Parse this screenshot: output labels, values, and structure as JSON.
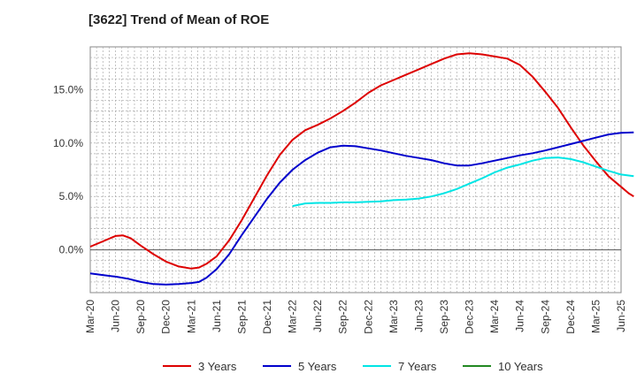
{
  "chart_data": {
    "type": "line",
    "title": "[3622]  Trend of Mean of ROE",
    "xlabel": "",
    "ylabel": "",
    "x_tick_labels": [
      "Mar-20",
      "Jun-20",
      "Sep-20",
      "Dec-20",
      "Mar-21",
      "Jun-21",
      "Sep-21",
      "Dec-21",
      "Mar-22",
      "Jun-22",
      "Sep-22",
      "Dec-22",
      "Mar-23",
      "Jun-23",
      "Sep-23",
      "Dec-23",
      "Mar-24",
      "Jun-24",
      "Sep-24",
      "Dec-24",
      "Mar-25",
      "Jun-25"
    ],
    "y_tick_labels": [
      "0.0%",
      "5.0%",
      "10.0%",
      "15.0%"
    ],
    "y_ticks": [
      0,
      5,
      10,
      15
    ],
    "ylim": [
      -4,
      19
    ],
    "grid": true,
    "legend_position": "bottom",
    "series": [
      {
        "name": "3 Years",
        "color": "#dd0000",
        "points": [
          [
            0,
            0.3
          ],
          [
            0.5,
            0.8
          ],
          [
            1,
            1.3
          ],
          [
            1.3,
            1.35
          ],
          [
            1.6,
            1.1
          ],
          [
            2,
            0.4
          ],
          [
            2.5,
            -0.4
          ],
          [
            3,
            -1.1
          ],
          [
            3.5,
            -1.55
          ],
          [
            4,
            -1.75
          ],
          [
            4.3,
            -1.65
          ],
          [
            4.6,
            -1.3
          ],
          [
            5,
            -0.6
          ],
          [
            5.5,
            0.9
          ],
          [
            6,
            2.8
          ],
          [
            6.5,
            4.9
          ],
          [
            7,
            7.0
          ],
          [
            7.5,
            8.9
          ],
          [
            8,
            10.3
          ],
          [
            8.5,
            11.2
          ],
          [
            9,
            11.7
          ],
          [
            9.5,
            12.3
          ],
          [
            10,
            13.0
          ],
          [
            10.5,
            13.8
          ],
          [
            11,
            14.7
          ],
          [
            11.5,
            15.4
          ],
          [
            12,
            15.9
          ],
          [
            12.5,
            16.4
          ],
          [
            13,
            16.9
          ],
          [
            13.5,
            17.4
          ],
          [
            14,
            17.9
          ],
          [
            14.5,
            18.3
          ],
          [
            15,
            18.4
          ],
          [
            15.5,
            18.3
          ],
          [
            16,
            18.1
          ],
          [
            16.5,
            17.9
          ],
          [
            17,
            17.3
          ],
          [
            17.5,
            16.2
          ],
          [
            18,
            14.8
          ],
          [
            18.5,
            13.3
          ],
          [
            19,
            11.5
          ],
          [
            19.5,
            9.8
          ],
          [
            20,
            8.3
          ],
          [
            20.5,
            6.9
          ],
          [
            21,
            5.9
          ],
          [
            21.3,
            5.3
          ],
          [
            21.5,
            5.0
          ]
        ]
      },
      {
        "name": "5 Years",
        "color": "#0000cc",
        "points": [
          [
            0,
            -2.2
          ],
          [
            0.5,
            -2.35
          ],
          [
            1,
            -2.5
          ],
          [
            1.5,
            -2.7
          ],
          [
            2,
            -3.0
          ],
          [
            2.5,
            -3.2
          ],
          [
            3,
            -3.25
          ],
          [
            3.5,
            -3.2
          ],
          [
            4,
            -3.1
          ],
          [
            4.3,
            -3.0
          ],
          [
            4.6,
            -2.6
          ],
          [
            5,
            -1.8
          ],
          [
            5.5,
            -0.4
          ],
          [
            6,
            1.4
          ],
          [
            6.5,
            3.1
          ],
          [
            7,
            4.8
          ],
          [
            7.5,
            6.3
          ],
          [
            8,
            7.5
          ],
          [
            8.5,
            8.4
          ],
          [
            9,
            9.1
          ],
          [
            9.5,
            9.6
          ],
          [
            10,
            9.75
          ],
          [
            10.5,
            9.7
          ],
          [
            11,
            9.5
          ],
          [
            11.5,
            9.3
          ],
          [
            12,
            9.05
          ],
          [
            12.5,
            8.8
          ],
          [
            13,
            8.6
          ],
          [
            13.5,
            8.4
          ],
          [
            14,
            8.1
          ],
          [
            14.5,
            7.9
          ],
          [
            15,
            7.9
          ],
          [
            15.5,
            8.1
          ],
          [
            16,
            8.35
          ],
          [
            16.5,
            8.6
          ],
          [
            17,
            8.85
          ],
          [
            17.5,
            9.05
          ],
          [
            18,
            9.3
          ],
          [
            18.5,
            9.6
          ],
          [
            19,
            9.9
          ],
          [
            19.5,
            10.2
          ],
          [
            20,
            10.5
          ],
          [
            20.5,
            10.8
          ],
          [
            21,
            10.95
          ],
          [
            21.5,
            11.0
          ]
        ]
      },
      {
        "name": "7 Years",
        "color": "#00e5e5",
        "points": [
          [
            8,
            4.1
          ],
          [
            8.5,
            4.35
          ],
          [
            9,
            4.4
          ],
          [
            9.5,
            4.4
          ],
          [
            10,
            4.45
          ],
          [
            10.5,
            4.45
          ],
          [
            11,
            4.5
          ],
          [
            11.5,
            4.55
          ],
          [
            12,
            4.65
          ],
          [
            12.5,
            4.7
          ],
          [
            13,
            4.8
          ],
          [
            13.5,
            5.0
          ],
          [
            14,
            5.3
          ],
          [
            14.5,
            5.7
          ],
          [
            15,
            6.2
          ],
          [
            15.5,
            6.7
          ],
          [
            16,
            7.25
          ],
          [
            16.5,
            7.7
          ],
          [
            17,
            8.0
          ],
          [
            17.5,
            8.35
          ],
          [
            18,
            8.6
          ],
          [
            18.5,
            8.65
          ],
          [
            19,
            8.5
          ],
          [
            19.5,
            8.2
          ],
          [
            20,
            7.8
          ],
          [
            20.5,
            7.4
          ],
          [
            21,
            7.05
          ],
          [
            21.5,
            6.9
          ]
        ]
      },
      {
        "name": "10 Years",
        "color": "#228822",
        "points": []
      }
    ]
  }
}
